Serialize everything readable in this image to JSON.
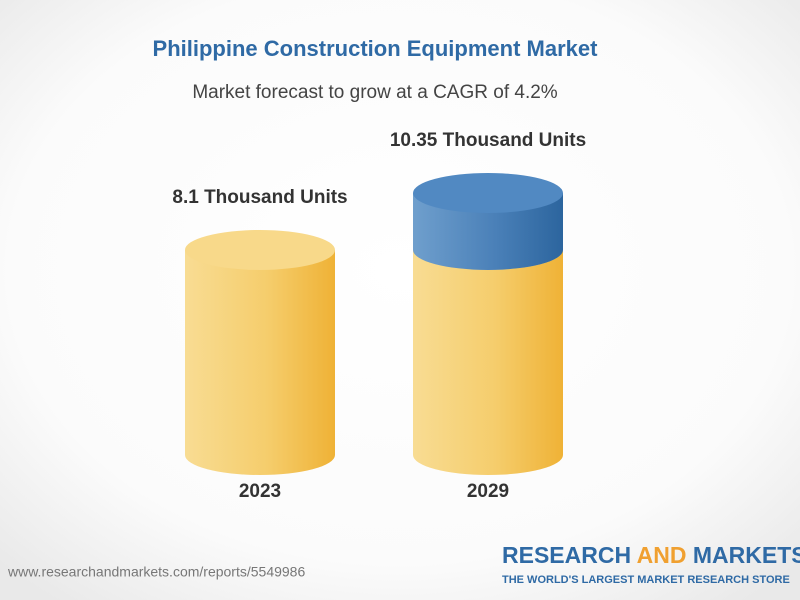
{
  "chart_data": {
    "type": "cylinder",
    "title": "Philippine Construction Equipment Market",
    "subtitle": "Market forecast to grow at a CAGR of 4.2%",
    "categories": [
      "2023",
      "2029"
    ],
    "values": [
      8.1,
      10.35
    ],
    "value_labels": [
      "8.1 Thousand Units",
      "10.35 Thousand Units"
    ],
    "color": "#f2bf4a",
    "growth_color": "#3d76ad"
  },
  "footer": {
    "source": "www.researchandmarkets.com/reports/5549986",
    "brand": {
      "research": "RESEARCH",
      "and": "AND",
      "markets": "MARKETS",
      "tagline": "THE WORLD'S LARGEST MARKET RESEARCH STORE"
    }
  }
}
